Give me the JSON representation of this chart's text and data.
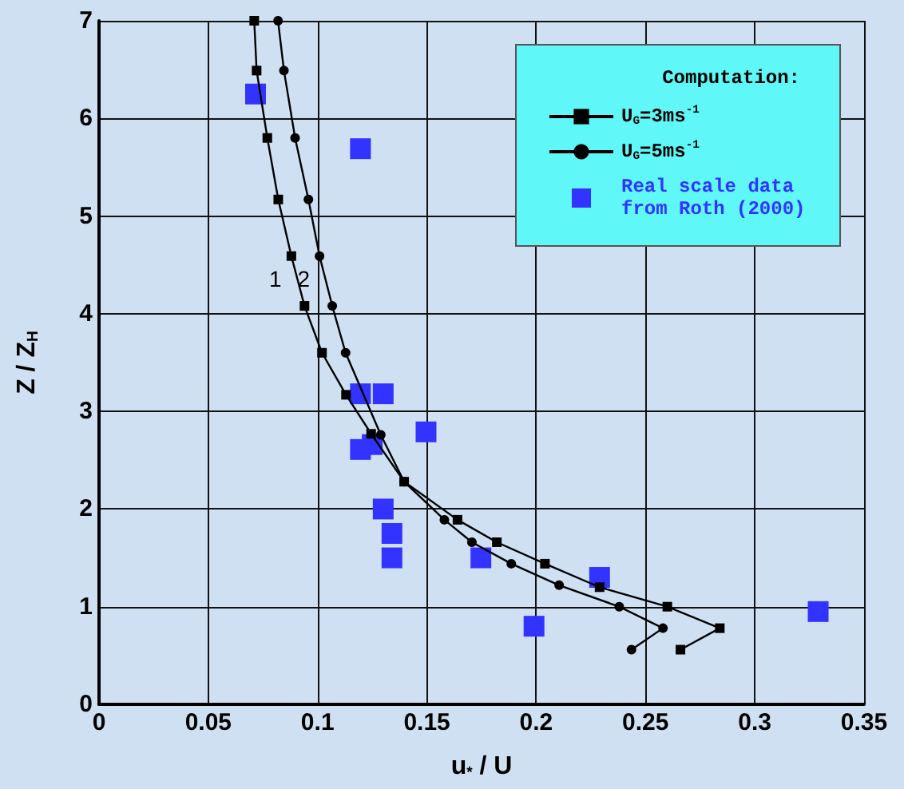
{
  "chart_data": {
    "type": "line",
    "xlabel": "u$_{*}$ / U",
    "ylabel": "Z / Z$_{H}$",
    "legend_title": "Computation:",
    "xlim": [
      0,
      0.35
    ],
    "xticks": [
      0,
      0.05,
      0.1,
      0.15,
      0.2,
      0.25,
      0.3,
      0.35
    ],
    "ylim": [
      0,
      7
    ],
    "yticks": [
      0,
      1,
      2,
      3,
      4,
      5,
      6,
      7
    ],
    "grid": true,
    "legend": "top right",
    "annotations": [
      "1",
      "2"
    ],
    "series": [
      {
        "name": "U$_{G}$=3ms$^{-1}$",
        "marker": "square",
        "color": "#000000",
        "x": [
          0.071,
          0.0721,
          0.077,
          0.082,
          0.088,
          0.094,
          0.102,
          0.113,
          0.1245,
          0.1396,
          0.164,
          0.182,
          0.204,
          0.229,
          0.26,
          0.284,
          0.266
        ],
        "values": [
          7.0,
          6.49,
          5.8,
          5.17,
          4.59,
          4.08,
          3.6,
          3.17,
          2.77,
          2.28,
          1.89,
          1.66,
          1.44,
          1.2,
          1.0,
          0.78,
          0.56
        ]
      },
      {
        "name": "U$_{G}$=5ms$^{-1}$",
        "marker": "circle",
        "color": "#000000",
        "x": [
          0.0819,
          0.0846,
          0.0897,
          0.0958,
          0.1009,
          0.1067,
          0.1128,
          0.1289,
          0.1396,
          0.158,
          0.1706,
          0.1886,
          0.2105,
          0.238,
          0.258,
          0.2436
        ],
        "values": [
          7.0,
          6.49,
          5.8,
          5.17,
          4.59,
          4.08,
          3.6,
          2.76,
          2.28,
          1.89,
          1.66,
          1.44,
          1.22,
          1.0,
          0.78,
          0.56
        ]
      },
      {
        "name": "Real scale data from Roth (2000)",
        "type": "scatter",
        "marker": "square",
        "color": "#3333ff",
        "x": [
          0.0716,
          0.1196,
          0.1196,
          0.13,
          0.1196,
          0.125,
          0.13,
          0.134,
          0.134,
          0.1496,
          0.1747,
          0.199,
          0.229,
          0.329
        ],
        "values": [
          6.25,
          5.69,
          3.18,
          3.18,
          2.61,
          2.66,
          2.0,
          1.75,
          1.5,
          2.79,
          1.5,
          0.8,
          1.3,
          0.95
        ]
      }
    ]
  }
}
